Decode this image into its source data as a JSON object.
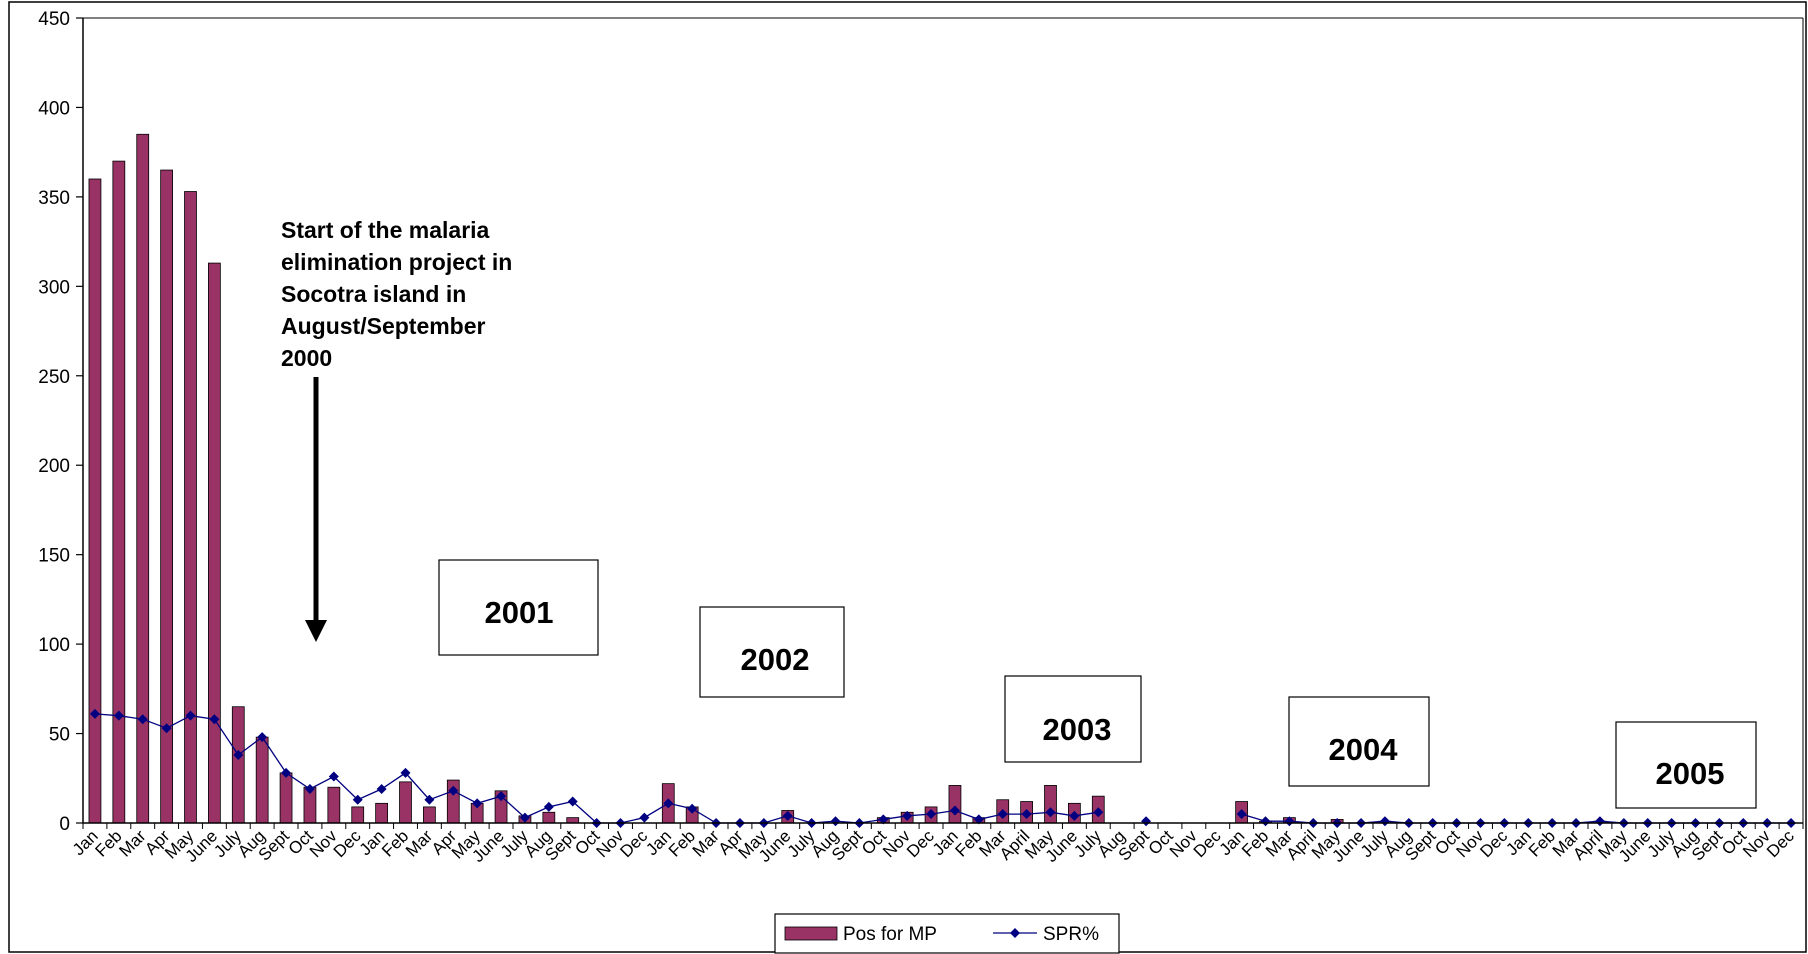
{
  "chart_data": {
    "type": "bar",
    "categories": [
      "Jan",
      "Feb",
      "Mar",
      "Apr",
      "May",
      "June",
      "July",
      "Aug",
      "Sept",
      "Oct",
      "Nov",
      "Dec",
      "Jan",
      "Feb",
      "Mar",
      "Apr",
      "May",
      "June",
      "July",
      "Aug",
      "Sept",
      "Oct",
      "Nov",
      "Dec",
      "Jan",
      "Feb",
      "Mar",
      "Apr",
      "May",
      "June",
      "July",
      "Aug",
      "Sept",
      "Oct",
      "Nov",
      "Dec",
      "Jan",
      "Feb",
      "Mar",
      "April",
      "May",
      "June",
      "July",
      "Aug",
      "Sept",
      "Oct",
      "Nov",
      "Dec",
      "Jan",
      "Feb",
      "Mar",
      "April",
      "May",
      "June",
      "July",
      "Aug",
      "Sept",
      "Oct",
      "Nov",
      "Dec",
      "Jan",
      "Feb",
      "Mar",
      "April",
      "May",
      "June",
      "July",
      "Aug",
      "Sept",
      "Oct",
      "Nov",
      "Dec"
    ],
    "series": [
      {
        "name": "Pos for MP",
        "kind": "bar",
        "color": "#993366",
        "values": [
          360,
          370,
          385,
          365,
          353,
          313,
          65,
          48,
          28,
          20,
          20,
          9,
          11,
          23,
          9,
          24,
          11,
          18,
          4,
          6,
          3,
          0,
          0,
          0,
          22,
          9,
          0,
          0,
          0,
          7,
          0,
          0,
          0,
          3,
          6,
          9,
          21,
          3,
          13,
          12,
          21,
          11,
          15,
          0,
          0,
          0,
          0,
          0,
          12,
          1,
          3,
          0,
          2,
          0,
          1,
          0,
          0,
          0,
          0,
          0,
          0,
          0,
          0,
          1,
          0,
          0,
          0,
          0,
          0,
          0,
          0,
          0
        ]
      },
      {
        "name": "SPR%",
        "kind": "line",
        "color": "#000080",
        "values": [
          61,
          60,
          58,
          53,
          60,
          58,
          38,
          48,
          28,
          19,
          26,
          13,
          19,
          28,
          13,
          18,
          11,
          15,
          3,
          9,
          12,
          0,
          0,
          3,
          11,
          8,
          0,
          0,
          0,
          4,
          0,
          1,
          0,
          2,
          4,
          5,
          7,
          2,
          5,
          5,
          6,
          4,
          6,
          null,
          1,
          null,
          null,
          null,
          5,
          1,
          1,
          0,
          0,
          0,
          1,
          0,
          0,
          0,
          0,
          0,
          0,
          0,
          0,
          1,
          0,
          0,
          0,
          0,
          0,
          0,
          0,
          0
        ]
      }
    ],
    "ylim": [
      0,
      450
    ],
    "yticks": [
      "0",
      "50",
      "100",
      "150",
      "200",
      "250",
      "300",
      "350",
      "400",
      "450"
    ],
    "year_labels": [
      "2001",
      "2002",
      "2003",
      "2004",
      "2005"
    ],
    "annotation": [
      "Start of the malaria",
      "elimination project in",
      "Socotra island in",
      "August/September",
      "2000"
    ],
    "legend": {
      "placement": "bottom-center",
      "items": [
        "Pos for MP",
        "SPR%"
      ]
    },
    "grid": false
  }
}
